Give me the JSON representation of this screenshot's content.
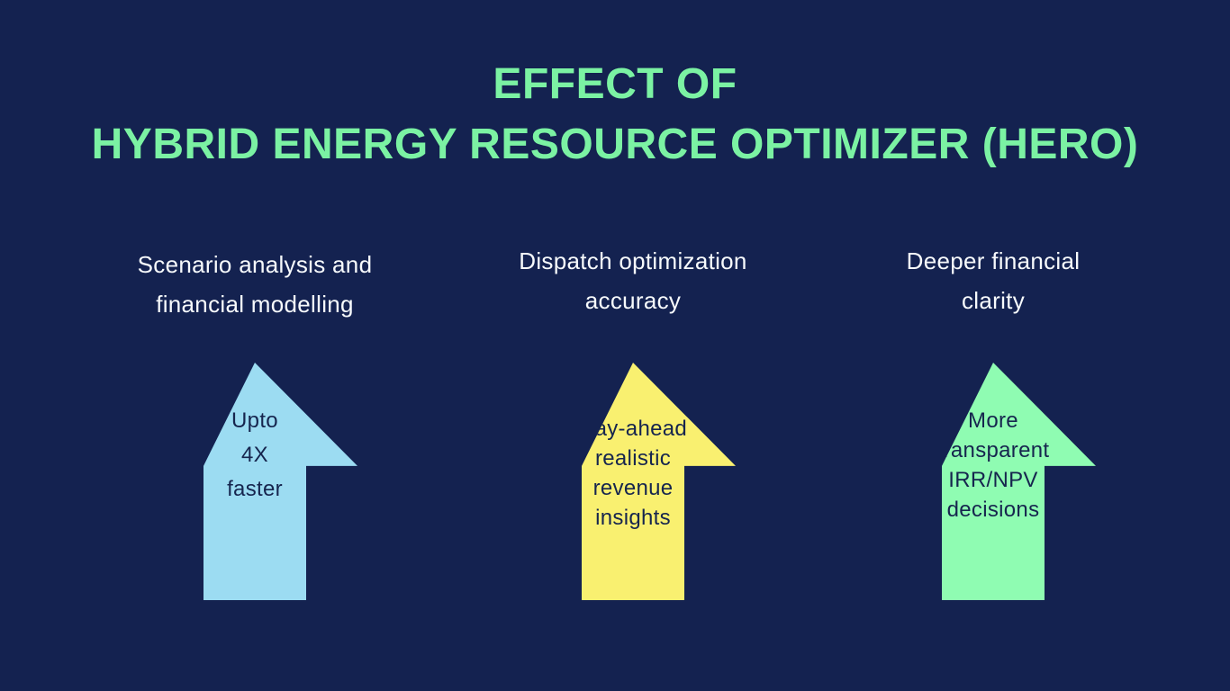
{
  "background_color": "#142250",
  "title": {
    "line1": "EFFECT OF",
    "line2": "HYBRID ENERGY RESOURCE OPTIMIZER (HERO)",
    "color": "#7BF2A3"
  },
  "columns": [
    {
      "heading": "Scenario analysis and financial modelling",
      "heading_lines": [
        "Scenario analysis and",
        "financial modelling"
      ],
      "arrow_color": "#9CDCF2",
      "arrow_label": "Upto 4X faster",
      "arrow_label_lines": [
        "Upto",
        "4X",
        "faster"
      ]
    },
    {
      "heading": "Dispatch optimization accuracy",
      "heading_lines": [
        "Dispatch optimization",
        "accuracy"
      ],
      "arrow_color": "#F9F070",
      "arrow_label": "Day-ahead realistic revenue insights",
      "arrow_label_lines": [
        "Day-ahead",
        "realistic",
        "revenue",
        "insights"
      ]
    },
    {
      "heading": "Deeper financial clarity",
      "heading_lines": [
        "Deeper financial",
        "clarity"
      ],
      "arrow_color": "#8FFCB2",
      "arrow_label": "More transparent IRR/NPV decisions",
      "arrow_label_lines": [
        "More",
        "transparent",
        "IRR/NPV",
        "decisions"
      ]
    }
  ],
  "text_colors": {
    "heading": "#F7FAFC",
    "arrow_label": "#16254E"
  }
}
